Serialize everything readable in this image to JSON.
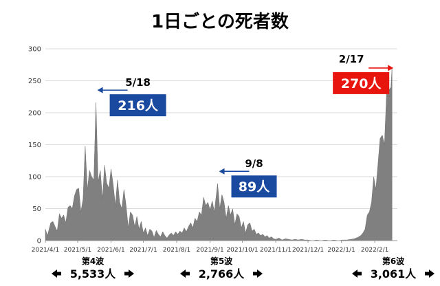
{
  "chart_data": {
    "type": "area",
    "title": "1日ごとの死者数",
    "ylim": [
      0,
      300
    ],
    "y_ticks": [
      "0",
      "50",
      "100",
      "150",
      "200",
      "250",
      "300"
    ],
    "x_range": [
      "2021-04-01",
      "2022-02-22"
    ],
    "x_ticks": [
      {
        "date": "2021-04-01",
        "label": "2021/4/1"
      },
      {
        "date": "2021-05-01",
        "label": "2021/5/1"
      },
      {
        "date": "2021-06-01",
        "label": "2021/6/1"
      },
      {
        "date": "2021-07-01",
        "label": "2021/7/1"
      },
      {
        "date": "2021-08-01",
        "label": "2021/8/1"
      },
      {
        "date": "2021-09-01",
        "label": "2021/9/1"
      },
      {
        "date": "2021-10-01",
        "label": "2021/10/1"
      },
      {
        "date": "2021-11-01",
        "label": "2021/11/1"
      },
      {
        "date": "2021-12-01",
        "label": "2021/12/1"
      },
      {
        "date": "2022-01-01",
        "label": "2022/1/1"
      },
      {
        "date": "2022-02-01",
        "label": "2022/2/1"
      }
    ],
    "grid": true,
    "color": "#808080",
    "series": [
      {
        "values": [
          [
            "2021-04-01",
            18
          ],
          [
            "2021-04-03",
            8
          ],
          [
            "2021-04-06",
            28
          ],
          [
            "2021-04-08",
            30
          ],
          [
            "2021-04-10",
            22
          ],
          [
            "2021-04-12",
            15
          ],
          [
            "2021-04-14",
            42
          ],
          [
            "2021-04-16",
            35
          ],
          [
            "2021-04-18",
            40
          ],
          [
            "2021-04-20",
            28
          ],
          [
            "2021-04-22",
            52
          ],
          [
            "2021-04-24",
            55
          ],
          [
            "2021-04-26",
            50
          ],
          [
            "2021-04-28",
            70
          ],
          [
            "2021-04-30",
            80
          ],
          [
            "2021-05-02",
            82
          ],
          [
            "2021-05-04",
            45
          ],
          [
            "2021-05-06",
            65
          ],
          [
            "2021-05-08",
            148
          ],
          [
            "2021-05-10",
            80
          ],
          [
            "2021-05-12",
            110
          ],
          [
            "2021-05-14",
            100
          ],
          [
            "2021-05-16",
            95
          ],
          [
            "2021-05-18",
            216
          ],
          [
            "2021-05-20",
            92
          ],
          [
            "2021-05-22",
            110
          ],
          [
            "2021-05-24",
            65
          ],
          [
            "2021-05-26",
            118
          ],
          [
            "2021-05-28",
            90
          ],
          [
            "2021-05-30",
            82
          ],
          [
            "2021-06-01",
            112
          ],
          [
            "2021-06-03",
            88
          ],
          [
            "2021-06-05",
            55
          ],
          [
            "2021-06-07",
            95
          ],
          [
            "2021-06-09",
            60
          ],
          [
            "2021-06-11",
            50
          ],
          [
            "2021-06-13",
            80
          ],
          [
            "2021-06-15",
            55
          ],
          [
            "2021-06-17",
            20
          ],
          [
            "2021-06-19",
            45
          ],
          [
            "2021-06-21",
            40
          ],
          [
            "2021-06-23",
            22
          ],
          [
            "2021-06-25",
            38
          ],
          [
            "2021-06-27",
            18
          ],
          [
            "2021-06-29",
            30
          ],
          [
            "2021-07-01",
            12
          ],
          [
            "2021-07-03",
            20
          ],
          [
            "2021-07-05",
            8
          ],
          [
            "2021-07-07",
            18
          ],
          [
            "2021-07-09",
            15
          ],
          [
            "2021-07-11",
            5
          ],
          [
            "2021-07-13",
            16
          ],
          [
            "2021-07-15",
            10
          ],
          [
            "2021-07-17",
            6
          ],
          [
            "2021-07-19",
            14
          ],
          [
            "2021-07-21",
            8
          ],
          [
            "2021-07-23",
            4
          ],
          [
            "2021-07-25",
            9
          ],
          [
            "2021-07-27",
            12
          ],
          [
            "2021-07-29",
            8
          ],
          [
            "2021-07-31",
            14
          ],
          [
            "2021-08-02",
            10
          ],
          [
            "2021-08-04",
            15
          ],
          [
            "2021-08-06",
            12
          ],
          [
            "2021-08-08",
            20
          ],
          [
            "2021-08-10",
            14
          ],
          [
            "2021-08-12",
            22
          ],
          [
            "2021-08-14",
            28
          ],
          [
            "2021-08-16",
            20
          ],
          [
            "2021-08-18",
            35
          ],
          [
            "2021-08-20",
            30
          ],
          [
            "2021-08-22",
            45
          ],
          [
            "2021-08-24",
            40
          ],
          [
            "2021-08-26",
            68
          ],
          [
            "2021-08-28",
            55
          ],
          [
            "2021-08-30",
            60
          ],
          [
            "2021-09-01",
            48
          ],
          [
            "2021-09-03",
            62
          ],
          [
            "2021-09-05",
            45
          ],
          [
            "2021-09-08",
            89
          ],
          [
            "2021-09-10",
            50
          ],
          [
            "2021-09-12",
            72
          ],
          [
            "2021-09-14",
            60
          ],
          [
            "2021-09-16",
            35
          ],
          [
            "2021-09-18",
            55
          ],
          [
            "2021-09-20",
            40
          ],
          [
            "2021-09-22",
            50
          ],
          [
            "2021-09-24",
            25
          ],
          [
            "2021-09-26",
            42
          ],
          [
            "2021-09-28",
            38
          ],
          [
            "2021-09-30",
            20
          ],
          [
            "2021-10-02",
            30
          ],
          [
            "2021-10-04",
            12
          ],
          [
            "2021-10-06",
            25
          ],
          [
            "2021-10-08",
            28
          ],
          [
            "2021-10-10",
            15
          ],
          [
            "2021-10-12",
            18
          ],
          [
            "2021-10-14",
            10
          ],
          [
            "2021-10-16",
            12
          ],
          [
            "2021-10-18",
            8
          ],
          [
            "2021-10-20",
            10
          ],
          [
            "2021-10-22",
            6
          ],
          [
            "2021-10-24",
            8
          ],
          [
            "2021-10-26",
            4
          ],
          [
            "2021-10-28",
            6
          ],
          [
            "2021-10-30",
            3
          ],
          [
            "2021-11-01",
            2
          ],
          [
            "2021-11-04",
            4
          ],
          [
            "2021-11-07",
            1
          ],
          [
            "2021-11-10",
            3
          ],
          [
            "2021-11-13",
            2
          ],
          [
            "2021-11-16",
            1
          ],
          [
            "2021-11-19",
            2
          ],
          [
            "2021-11-22",
            1
          ],
          [
            "2021-11-25",
            2
          ],
          [
            "2021-11-28",
            1
          ],
          [
            "2021-12-01",
            1
          ],
          [
            "2021-12-05",
            0
          ],
          [
            "2021-12-09",
            1
          ],
          [
            "2021-12-13",
            0
          ],
          [
            "2021-12-17",
            1
          ],
          [
            "2021-12-21",
            0
          ],
          [
            "2021-12-25",
            1
          ],
          [
            "2021-12-29",
            0
          ],
          [
            "2022-01-02",
            1
          ],
          [
            "2022-01-06",
            1
          ],
          [
            "2022-01-10",
            2
          ],
          [
            "2022-01-13",
            3
          ],
          [
            "2022-01-16",
            5
          ],
          [
            "2022-01-19",
            8
          ],
          [
            "2022-01-21",
            12
          ],
          [
            "2022-01-23",
            18
          ],
          [
            "2022-01-25",
            40
          ],
          [
            "2022-01-27",
            45
          ],
          [
            "2022-01-29",
            60
          ],
          [
            "2022-01-31",
            100
          ],
          [
            "2022-02-02",
            80
          ],
          [
            "2022-02-04",
            120
          ],
          [
            "2022-02-06",
            160
          ],
          [
            "2022-02-08",
            165
          ],
          [
            "2022-02-10",
            150
          ],
          [
            "2022-02-12",
            230
          ],
          [
            "2022-02-14",
            235
          ],
          [
            "2022-02-16",
            240
          ],
          [
            "2022-02-17",
            270
          ]
        ]
      }
    ],
    "annotations": [
      {
        "date_label": "5/18",
        "value_label": "216人",
        "box_color": "#1a4aa0",
        "arrow": "left",
        "x": "2021-05-18",
        "y": 216
      },
      {
        "date_label": "9/8",
        "value_label": "89人",
        "box_color": "#1a4aa0",
        "arrow": "left",
        "x": "2021-09-08",
        "y": 89
      },
      {
        "date_label": "2/17",
        "value_label": "270人",
        "box_color": "#e8150f",
        "arrow": "right",
        "x": "2022-02-17",
        "y": 270
      }
    ],
    "waves": [
      {
        "name": "第4波",
        "total": "5,533人"
      },
      {
        "name": "第5波",
        "total": "2,766人"
      },
      {
        "name": "第6波",
        "total": "3,061人"
      }
    ]
  }
}
